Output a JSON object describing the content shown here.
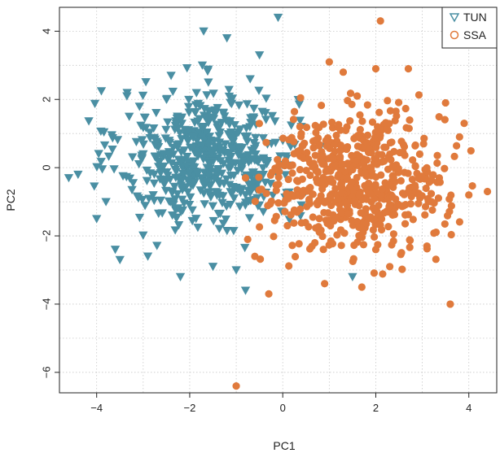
{
  "chart_data": {
    "type": "scatter",
    "title": "",
    "xlabel": "PC1",
    "ylabel": "PC2",
    "xlim": [
      -4.8,
      4.6
    ],
    "ylim": [
      -6.6,
      4.7
    ],
    "xticks": [
      -4,
      -2,
      0,
      2,
      4
    ],
    "yticks": [
      -6,
      -4,
      -2,
      0,
      2,
      4
    ],
    "grid": "dotted",
    "legend": {
      "placement": "top-right",
      "entries": [
        "TUN",
        "SSA"
      ]
    },
    "series": [
      {
        "name": "TUN",
        "marker": "triangle-down",
        "color": "#4a8fa3",
        "summary": {
          "center": [
            -1.6,
            0.3
          ],
          "spread": [
            0.95,
            1.0
          ],
          "n": 560
        },
        "points": [
          [
            -0.1,
            4.4
          ],
          [
            -1.7,
            4.0
          ],
          [
            -1.2,
            3.8
          ],
          [
            -0.5,
            3.3
          ],
          [
            -2.4,
            2.7
          ],
          [
            -4.4,
            -0.2
          ],
          [
            -4.6,
            -0.3
          ],
          [
            -3.6,
            -2.4
          ],
          [
            -3.5,
            -2.7
          ],
          [
            -4.0,
            -1.5
          ],
          [
            -3.8,
            -1.0
          ],
          [
            -2.2,
            -3.2
          ],
          [
            -0.8,
            -3.6
          ],
          [
            1.5,
            -3.2
          ],
          [
            -3.3,
            1.5
          ],
          [
            -0.7,
            2.6
          ],
          [
            -2.9,
            -2.6
          ],
          [
            -1.0,
            -3.0
          ],
          [
            0.4,
            -1.1
          ],
          [
            0.4,
            1.2
          ],
          [
            -2.5,
            2.0
          ],
          [
            -3.0,
            0.4
          ],
          [
            -1.5,
            -2.9
          ]
        ]
      },
      {
        "name": "SSA",
        "marker": "circle-open",
        "color": "#e07a3c",
        "summary": {
          "center": [
            1.6,
            -0.4
          ],
          "spread": [
            0.95,
            1.0
          ],
          "n": 620
        },
        "points": [
          [
            2.1,
            4.3
          ],
          [
            1.0,
            3.1
          ],
          [
            1.3,
            2.8
          ],
          [
            2.0,
            2.9
          ],
          [
            2.7,
            2.9
          ],
          [
            3.5,
            1.9
          ],
          [
            3.9,
            1.3
          ],
          [
            4.0,
            -0.8
          ],
          [
            4.4,
            -0.7
          ],
          [
            3.6,
            -4.0
          ],
          [
            -1.0,
            -6.4
          ],
          [
            -0.3,
            -3.7
          ],
          [
            0.9,
            -3.4
          ],
          [
            1.7,
            -3.5
          ],
          [
            2.3,
            -2.9
          ],
          [
            -0.6,
            -2.6
          ],
          [
            -0.8,
            -0.3
          ],
          [
            3.1,
            -2.3
          ],
          [
            2.0,
            -2.4
          ],
          [
            0.1,
            -1.7
          ],
          [
            3.8,
            0.9
          ],
          [
            1.6,
            2.1
          ],
          [
            3.2,
            -1.0
          ]
        ]
      }
    ]
  }
}
